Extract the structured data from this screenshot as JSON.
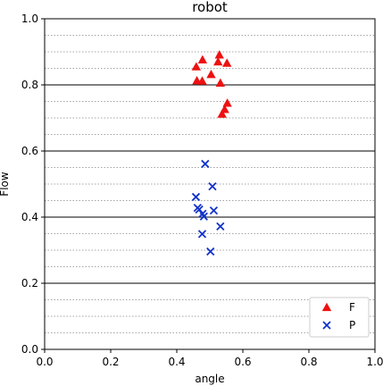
{
  "chart_data": {
    "type": "scatter",
    "title": "robot",
    "xlabel": "angle",
    "ylabel": "Flow",
    "xlim": [
      0.0,
      1.0
    ],
    "ylim": [
      0.0,
      1.0
    ],
    "xticks": [
      "0.0",
      "0.2",
      "0.4",
      "0.6",
      "0.8",
      "1.0"
    ],
    "yticks": [
      "0.0",
      "0.2",
      "0.4",
      "0.6",
      "0.8",
      "1.0"
    ],
    "grid": "major solid, minor dotted (y)",
    "legend_position": "bottom-right",
    "series": [
      {
        "name": "F",
        "marker": "triangle",
        "color": "#ee1111",
        "points": [
          [
            0.478,
            0.876
          ],
          [
            0.529,
            0.891
          ],
          [
            0.459,
            0.855
          ],
          [
            0.525,
            0.87
          ],
          [
            0.552,
            0.866
          ],
          [
            0.504,
            0.832
          ],
          [
            0.461,
            0.813
          ],
          [
            0.477,
            0.812
          ],
          [
            0.532,
            0.806
          ],
          [
            0.553,
            0.745
          ],
          [
            0.545,
            0.726
          ],
          [
            0.537,
            0.712
          ]
        ]
      },
      {
        "name": "P",
        "marker": "x",
        "color": "#1133cc",
        "points": [
          [
            0.486,
            0.561
          ],
          [
            0.508,
            0.493
          ],
          [
            0.458,
            0.461
          ],
          [
            0.463,
            0.428
          ],
          [
            0.468,
            0.423
          ],
          [
            0.512,
            0.42
          ],
          [
            0.478,
            0.41
          ],
          [
            0.482,
            0.402
          ],
          [
            0.532,
            0.372
          ],
          [
            0.477,
            0.349
          ],
          [
            0.502,
            0.296
          ]
        ]
      }
    ]
  }
}
